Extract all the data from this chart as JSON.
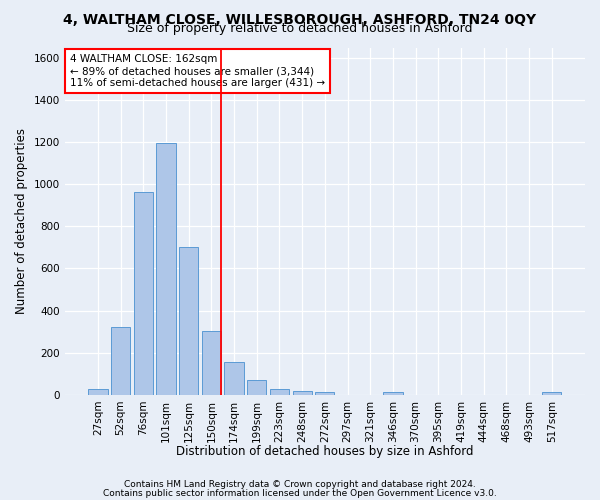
{
  "title": "4, WALTHAM CLOSE, WILLESBOROUGH, ASHFORD, TN24 0QY",
  "subtitle": "Size of property relative to detached houses in Ashford",
  "xlabel": "Distribution of detached houses by size in Ashford",
  "ylabel": "Number of detached properties",
  "footer1": "Contains HM Land Registry data © Crown copyright and database right 2024.",
  "footer2": "Contains public sector information licensed under the Open Government Licence v3.0.",
  "bar_labels": [
    "27sqm",
    "52sqm",
    "76sqm",
    "101sqm",
    "125sqm",
    "150sqm",
    "174sqm",
    "199sqm",
    "223sqm",
    "248sqm",
    "272sqm",
    "297sqm",
    "321sqm",
    "346sqm",
    "370sqm",
    "395sqm",
    "419sqm",
    "444sqm",
    "468sqm",
    "493sqm",
    "517sqm"
  ],
  "bar_values": [
    28,
    320,
    965,
    1195,
    700,
    305,
    155,
    70,
    28,
    18,
    15,
    0,
    0,
    12,
    0,
    0,
    0,
    0,
    0,
    0,
    12
  ],
  "bar_color": "#aec6e8",
  "bar_edge_color": "#5b9bd5",
  "ylim": [
    0,
    1650
  ],
  "yticks": [
    0,
    200,
    400,
    600,
    800,
    1000,
    1200,
    1400,
    1600
  ],
  "red_line_bin": 5,
  "annotation_line1": "4 WALTHAM CLOSE: 162sqm",
  "annotation_line2": "← 89% of detached houses are smaller (3,344)",
  "annotation_line3": "11% of semi-detached houses are larger (431) →",
  "bg_color": "#e8eef7",
  "grid_color": "#ffffff",
  "title_fontsize": 10,
  "subtitle_fontsize": 9,
  "axis_label_fontsize": 8.5,
  "tick_fontsize": 7.5,
  "footer_fontsize": 6.5,
  "ann_fontsize": 7.5
}
